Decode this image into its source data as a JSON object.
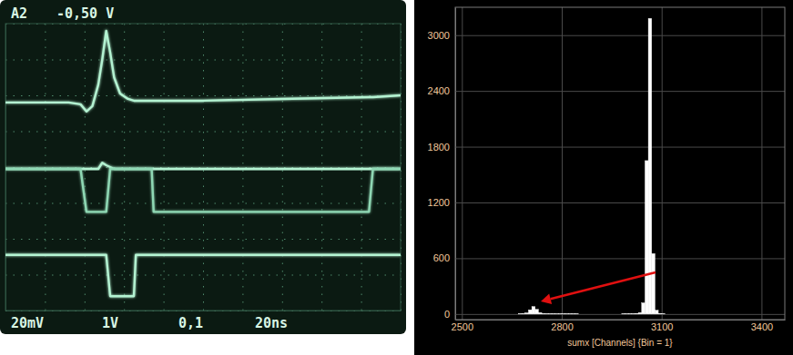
{
  "chart_data": [
    {
      "type": "line",
      "annotations": [
        "A2",
        "-0,50 V",
        "20mV",
        "1V",
        "0,1",
        "20ns"
      ],
      "x": [
        0,
        1.6,
        1.9,
        2.05,
        2.2,
        2.35,
        2.45,
        2.55,
        2.65,
        2.75,
        2.9,
        3.1,
        3.25,
        3.3,
        3.7,
        3.75,
        5,
        7,
        9.2,
        9.3,
        10
      ],
      "series": [
        {
          "color": "#b4f3d2",
          "values": [
            1.8,
            1.8,
            1.75,
            1.55,
            1.7,
            2.3,
            3.0,
            3.8,
            3.2,
            2.5,
            2.05,
            1.9,
            1.85,
            1.85,
            1.85,
            1.85,
            1.85,
            1.9,
            1.95,
            1.95,
            2.0
          ]
        },
        {
          "color": "#b4f3d2",
          "values": [
            -0.05,
            -0.05,
            -0.05,
            -0.05,
            -0.05,
            -0.05,
            0.12,
            0.05,
            0,
            -0.05,
            -0.05,
            -0.05,
            -0.05,
            -0.05,
            -0.05,
            -0.05,
            -0.05,
            -0.05,
            -0.05,
            -0.05,
            -0.05
          ]
        },
        {
          "color": "#8fd8b4",
          "values": [
            -0.05,
            -0.05,
            -0.05,
            -1.25,
            -1.25,
            -1.25,
            -1.25,
            -1.25,
            -0.05,
            -0.05,
            -0.05,
            -0.05,
            -0.05,
            -0.05,
            -0.05,
            -1.25,
            -1.25,
            -1.25,
            -1.25,
            -0.05,
            -0.05
          ]
        },
        {
          "color": "#b4f3d2",
          "values": [
            -2.45,
            -2.45,
            -2.45,
            -2.45,
            -2.45,
            -2.45,
            -2.45,
            -2.45,
            -3.6,
            -3.6,
            -3.6,
            -3.6,
            -3.6,
            -2.45,
            -2.45,
            -2.45,
            -2.45,
            -2.45,
            -2.45,
            -2.45,
            -2.45
          ]
        }
      ],
      "xlim": [
        0,
        10
      ],
      "ylim": [
        -4,
        4
      ],
      "xticks": [
        0,
        1,
        2,
        3,
        4,
        5,
        6,
        7,
        8,
        9,
        10
      ],
      "yticks": [
        -4,
        -3,
        -2,
        -1,
        0,
        1,
        2,
        3,
        4
      ],
      "grid": true,
      "tick_labels": false
    },
    {
      "type": "histogram",
      "x_label": "sumx [Channels] {Bin = 1}",
      "bins": [
        2670,
        2680,
        2690,
        2700,
        2710,
        2720,
        2730,
        2740,
        2750,
        2760,
        2770,
        2780,
        2790,
        2800,
        2810,
        2820,
        2830,
        2840,
        2850,
        2860,
        2870,
        2880,
        2890,
        2900,
        2910,
        2920,
        2930,
        2940,
        2950,
        2960,
        2970,
        2980,
        2990,
        3000,
        3010,
        3020,
        3030,
        3040,
        3050,
        3060,
        3070,
        3080,
        3090,
        3100,
        3110
      ],
      "counts": [
        2,
        4,
        12,
        45,
        80,
        50,
        15,
        5,
        3,
        2,
        2,
        1,
        1,
        1,
        1,
        1,
        1,
        1,
        0,
        0,
        0,
        0,
        0,
        0,
        0,
        0,
        0,
        0,
        0,
        0,
        0,
        1,
        1,
        2,
        3,
        6,
        15,
        120,
        1650,
        3180,
        650,
        40,
        6,
        2
      ],
      "color": "#ffffff",
      "xlim": [
        2480,
        3470
      ],
      "ylim": [
        -60,
        3300
      ],
      "xticks": [
        2500,
        2800,
        3100,
        3400
      ],
      "yticks": [
        0,
        600,
        1200,
        1800,
        2400,
        3000
      ],
      "grid": true
    }
  ]
}
